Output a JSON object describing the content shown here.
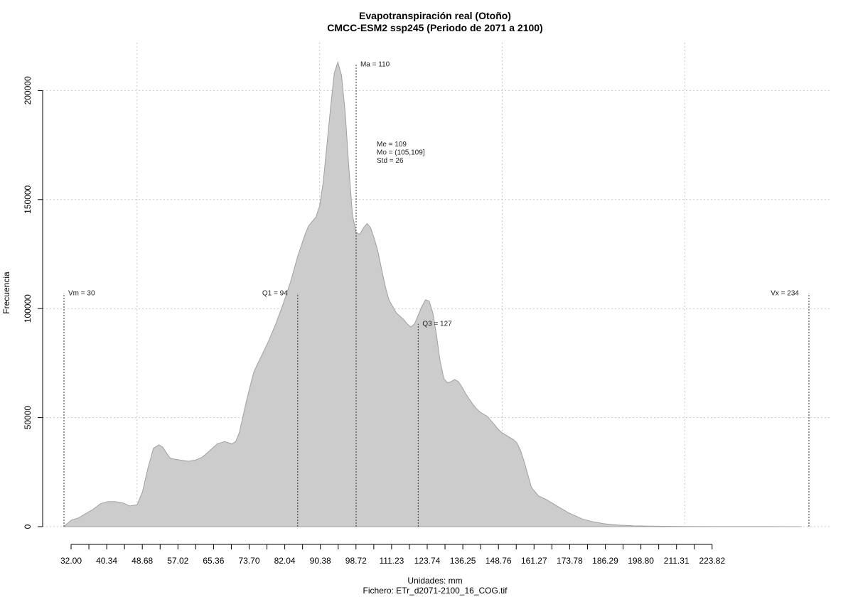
{
  "chart_data": {
    "type": "area",
    "title": "Evapotranspiración real (Otoño)",
    "subtitle": "CMCC-ESM2 ssp245 (Periodo de 2071 a 2100)",
    "xlabel": "Unidades: mm",
    "ylabel": "Frecuencia",
    "footer": "Fichero: ETr_d2071-2100_16_COG.tif",
    "xlim": [
      30,
      234
    ],
    "ylim": [
      0,
      215000
    ],
    "grid": true,
    "fill_color": "#cccccc",
    "line_color": "#a0a0a0",
    "x_tick_labels": [
      "32.00",
      "40.34",
      "48.68",
      "57.02",
      "65.36",
      "73.70",
      "82.04",
      "90.38",
      "98.72",
      "111.23",
      "123.74",
      "136.25",
      "148.76",
      "161.27",
      "173.78",
      "186.29",
      "198.80",
      "211.31",
      "223.82"
    ],
    "y_ticks": [
      0,
      50000,
      100000,
      150000,
      200000
    ],
    "y_tick_labels": [
      "0",
      "50000",
      "100000",
      "150000",
      "200000"
    ],
    "x_grid": [
      50,
      100,
      150,
      200
    ],
    "series": [
      {
        "x": [
          30,
          32,
          34,
          36,
          38,
          40,
          42,
          44,
          46,
          48,
          50,
          51.5,
          53,
          54.5,
          56,
          57,
          58,
          59,
          60,
          62,
          64,
          66,
          68,
          70,
          72,
          74,
          75,
          76,
          77,
          78,
          80,
          82,
          84,
          86,
          88,
          90,
          92,
          94,
          96,
          97,
          98,
          99,
          100,
          101,
          102,
          103,
          104,
          105,
          106,
          107,
          108,
          109,
          110,
          111,
          112,
          113,
          114,
          115,
          116,
          117,
          118,
          119,
          120,
          121,
          122,
          123,
          124,
          125,
          126,
          127,
          128,
          129,
          130,
          131,
          132,
          133,
          134,
          135,
          136,
          137,
          138,
          139,
          140,
          141,
          142,
          143,
          144,
          145,
          146,
          147,
          148,
          149,
          150,
          151,
          152,
          153,
          154,
          155,
          156,
          157,
          158,
          160,
          162,
          164,
          166,
          168,
          170,
          172,
          175,
          178,
          182,
          186,
          190,
          195,
          200,
          210,
          220,
          232
        ],
        "y": [
          0,
          3000,
          4000,
          6000,
          8000,
          10500,
          11500,
          11500,
          11000,
          9500,
          10000,
          16000,
          27000,
          36000,
          37500,
          36500,
          34000,
          31500,
          31000,
          30500,
          30000,
          30500,
          32000,
          35000,
          38000,
          39000,
          38500,
          38000,
          39000,
          43000,
          58000,
          71000,
          78000,
          85000,
          93000,
          102000,
          112000,
          124000,
          134000,
          138000,
          140000,
          142000,
          147000,
          158000,
          175000,
          192000,
          208000,
          213000,
          207000,
          190000,
          165000,
          143000,
          135000,
          134000,
          137000,
          139000,
          137000,
          132000,
          126000,
          118000,
          110000,
          104000,
          101000,
          98000,
          96500,
          95000,
          93000,
          91500,
          93000,
          97000,
          101000,
          104000,
          103500,
          98000,
          88000,
          76000,
          68000,
          66000,
          66500,
          67500,
          66500,
          64000,
          61000,
          58500,
          56000,
          54000,
          52500,
          51500,
          50500,
          48500,
          46500,
          44500,
          43000,
          42000,
          41000,
          40000,
          38500,
          35000,
          30000,
          24000,
          18000,
          14000,
          12500,
          10500,
          8500,
          6500,
          5000,
          3500,
          2200,
          1300,
          700,
          400,
          250,
          150,
          80,
          40,
          20,
          0
        ]
      }
    ],
    "annotations": [
      {
        "label": "Vm = 30",
        "x": 30,
        "line_top": 107000,
        "text_y": 107000,
        "anchor": "start"
      },
      {
        "label": "Q1 = 94",
        "x": 94,
        "line_top": 107000,
        "text_y": 107000,
        "anchor": "end"
      },
      {
        "label": "Ma = 110",
        "x": 110,
        "line_top": 212000,
        "text_y": 212000,
        "anchor": "start"
      },
      {
        "label": "Q3 = 127",
        "x": 127,
        "line_top": 93000,
        "text_y": 93000,
        "anchor": "start"
      },
      {
        "label": "Vx = 234",
        "x": 234,
        "line_top": 107000,
        "text_y": 107000,
        "anchor": "end"
      }
    ],
    "stats": [
      "Me = 109",
      "Mo = (105,109]",
      "Std = 26"
    ]
  }
}
